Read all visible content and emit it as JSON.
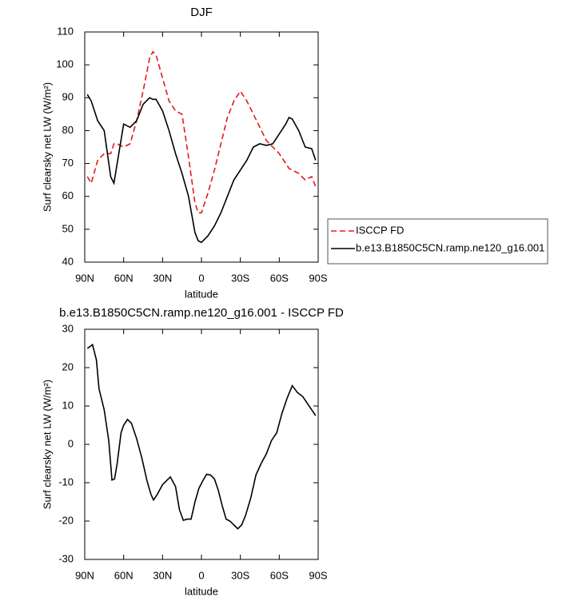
{
  "chart_data": [
    {
      "type": "line",
      "title": "DJF",
      "xlabel": "latitude",
      "ylabel": "Surf clearsky net LW (W/m²)",
      "x": [
        88,
        85,
        80,
        75,
        70,
        67.5,
        65,
        60,
        55,
        50,
        45,
        40,
        37.5,
        35,
        30,
        25,
        20,
        15,
        10,
        5,
        2.5,
        0,
        -5,
        -10,
        -15,
        -20,
        -25,
        -30,
        -35,
        -40,
        -45,
        -50,
        -55,
        -60,
        -65,
        -67.5,
        -70,
        -75,
        -80,
        -85,
        -88
      ],
      "series": [
        {
          "name": "ISCCP FD",
          "color": "#e41a1c",
          "line_style": "dashed",
          "values": [
            66,
            64,
            71,
            73,
            73,
            76,
            76,
            75,
            76,
            83,
            92,
            102,
            104,
            103,
            96,
            89,
            86,
            85,
            72,
            58,
            55,
            55,
            61,
            68,
            76,
            84,
            89,
            92,
            89,
            85,
            81,
            77,
            75,
            73,
            70,
            68.5,
            68,
            67,
            65,
            66,
            63
          ]
        },
        {
          "name": "b.e13.B1850C5CN.ramp.ne120_g16.001",
          "color": "#000000",
          "line_style": "solid",
          "values": [
            91,
            89,
            83,
            80,
            66,
            64,
            70,
            82,
            81,
            83,
            88,
            90,
            89.5,
            89.5,
            86,
            80,
            73,
            67,
            60,
            49,
            46.5,
            46,
            48,
            51,
            55,
            60,
            65,
            68,
            71,
            75,
            76,
            75.5,
            76,
            79,
            82,
            84,
            83.5,
            80,
            75,
            74.5,
            71
          ]
        }
      ],
      "xlim": [
        90,
        -90
      ],
      "xticks": [
        {
          "value": 90,
          "label": "90N"
        },
        {
          "value": 60,
          "label": "60N"
        },
        {
          "value": 30,
          "label": "30N"
        },
        0,
        {
          "value": -30,
          "label": "30S"
        },
        {
          "value": -60,
          "label": "60S"
        },
        {
          "value": -90,
          "label": "90S"
        }
      ],
      "ylim": [
        40,
        110
      ],
      "yticks": [
        40,
        50,
        60,
        70,
        80,
        90,
        100,
        110
      ],
      "legend": "right"
    },
    {
      "type": "line",
      "title": "b.e13.B1850C5CN.ramp.ne120_g16.001 - ISCCP FD",
      "xlabel": "latitude",
      "ylabel": "Surf clearsky net LW (W/m²)",
      "x": [
        88,
        84,
        81,
        79,
        75,
        71.5,
        69,
        67,
        65,
        62,
        60,
        57,
        54,
        50,
        46,
        42,
        39,
        37,
        34,
        30,
        27,
        24,
        20,
        17,
        14,
        11,
        8,
        5,
        2,
        -1,
        -4,
        -7,
        -10,
        -13,
        -16,
        -19,
        -22,
        -25,
        -28,
        -31,
        -34,
        -38,
        -42,
        -46,
        -50,
        -54,
        -58,
        -62,
        -66,
        -70,
        -74,
        -78,
        -82,
        -86,
        -88
      ],
      "values": [
        25,
        26,
        22,
        14.5,
        9,
        1,
        -9.3,
        -9,
        -5,
        3,
        5,
        6.5,
        5.5,
        1.5,
        -3.5,
        -9.5,
        -13,
        -14.5,
        -13,
        -10.5,
        -9.5,
        -8.5,
        -11,
        -17,
        -19.8,
        -19.5,
        -19.5,
        -15,
        -11.5,
        -9.5,
        -7.8,
        -8,
        -9,
        -12,
        -16,
        -19.5,
        -20,
        -21,
        -22,
        -21,
        -18.5,
        -14,
        -8,
        -5,
        -2.5,
        1,
        3,
        8,
        12,
        15.3,
        13.5,
        12.5,
        10.5,
        8.5,
        7.5
      ],
      "color": "#000000",
      "line_style": "solid",
      "xlim": [
        90,
        -90
      ],
      "xticks": [
        {
          "value": 90,
          "label": "90N"
        },
        {
          "value": 60,
          "label": "60N"
        },
        {
          "value": 30,
          "label": "30N"
        },
        0,
        {
          "value": -30,
          "label": "30S"
        },
        {
          "value": -60,
          "label": "60S"
        },
        {
          "value": -90,
          "label": "90S"
        }
      ],
      "ylim": [
        -30,
        30
      ],
      "yticks": [
        -30,
        -20,
        -10,
        0,
        10,
        20,
        30
      ]
    }
  ]
}
